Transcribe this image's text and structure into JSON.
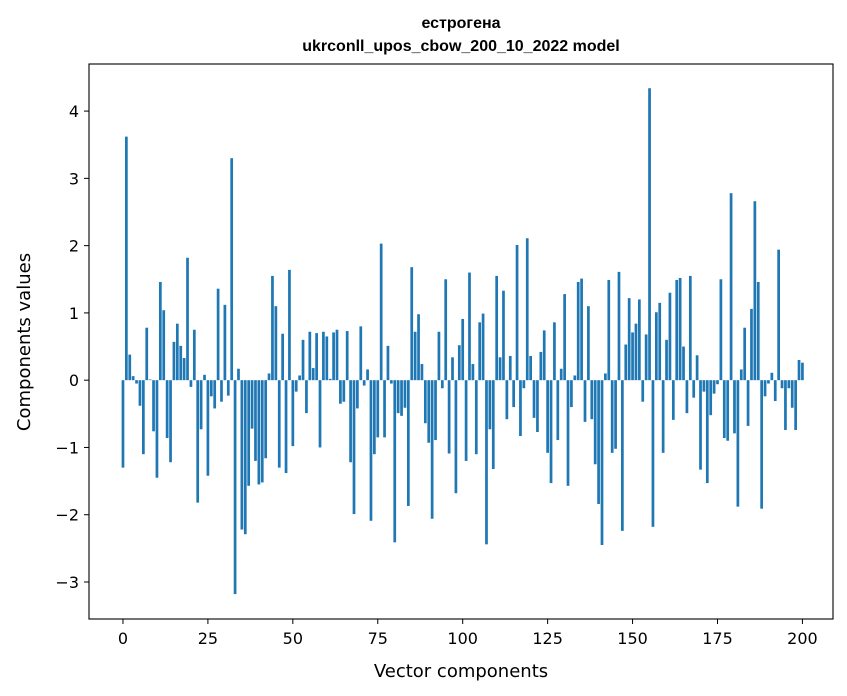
{
  "chart_data": {
    "type": "bar",
    "title_line1": "естрогена",
    "title_line2": "ukrconll_upos_cbow_200_10_2022 model",
    "xlabel": "Vector components",
    "ylabel": "Components values",
    "xlim": [
      -10,
      209
    ],
    "ylim": [
      -3.55,
      4.7
    ],
    "x_ticks": [
      0,
      25,
      50,
      75,
      100,
      125,
      150,
      175,
      200
    ],
    "y_ticks": [
      -3,
      -2,
      -1,
      0,
      1,
      2,
      3,
      4
    ],
    "y_tick_labels": [
      "−3",
      "−2",
      "−1",
      "0",
      "1",
      "2",
      "3",
      "4"
    ],
    "bar_color": "#1f77b4",
    "grid": false,
    "values": [
      -1.3,
      3.62,
      0.38,
      0.06,
      -0.05,
      -0.38,
      -1.1,
      0.78,
      0.01,
      -0.76,
      -1.45,
      1.46,
      1.04,
      -0.86,
      -1.22,
      0.57,
      0.84,
      0.51,
      0.33,
      1.82,
      -0.1,
      0.75,
      -1.82,
      -0.73,
      0.08,
      -1.42,
      -0.24,
      -0.42,
      1.36,
      -0.32,
      1.12,
      -0.23,
      3.3,
      -3.18,
      0.17,
      -2.22,
      -2.29,
      -1.57,
      -0.72,
      -1.2,
      -1.55,
      -1.52,
      -1.16,
      0.1,
      1.55,
      1.1,
      -1.3,
      0.69,
      -1.38,
      1.64,
      -0.98,
      -0.17,
      0.07,
      0.6,
      -0.49,
      0.72,
      0.18,
      0.7,
      -1.0,
      0.72,
      0.65,
      0.02,
      0.71,
      0.75,
      -0.35,
      -0.32,
      0.73,
      -1.22,
      -1.99,
      -0.42,
      0.8,
      -0.08,
      0.16,
      -2.09,
      -1.1,
      -0.85,
      2.03,
      -0.85,
      0.51,
      -0.05,
      -2.41,
      -0.49,
      -0.53,
      -0.41,
      -1.87,
      1.68,
      0.72,
      0.98,
      0.24,
      -0.64,
      -0.93,
      -2.06,
      -0.89,
      0.72,
      -0.12,
      1.5,
      -1.09,
      0.34,
      -1.68,
      0.52,
      0.91,
      -1.2,
      1.6,
      0.24,
      -1.1,
      0.86,
      0.99,
      -2.44,
      -0.73,
      -1.32,
      1.55,
      0.34,
      1.33,
      -0.58,
      0.36,
      -0.4,
      2.01,
      -0.83,
      -0.12,
      2.11,
      0.36,
      -0.56,
      -0.77,
      0.42,
      0.74,
      -1.08,
      -1.53,
      0.86,
      -0.89,
      0.17,
      1.28,
      -1.57,
      -0.4,
      0.07,
      1.46,
      1.51,
      -0.62,
      1.1,
      -0.58,
      -1.25,
      -1.84,
      -2.45,
      0.1,
      1.49,
      -1.08,
      -1.02,
      1.61,
      -2.24,
      0.53,
      1.22,
      0.71,
      0.84,
      1.2,
      -0.32,
      0.68,
      4.34,
      -2.18,
      1.01,
      1.15,
      -1.08,
      0.6,
      1.3,
      -0.59,
      1.49,
      1.52,
      0.5,
      -0.49,
      1.55,
      -0.26,
      0.37,
      -1.33,
      -0.17,
      -1.53,
      -0.52,
      -0.2,
      -0.06,
      1.5,
      -0.86,
      -0.9,
      2.78,
      -0.79,
      -1.88,
      0.16,
      0.78,
      -0.68,
      1.06,
      2.66,
      1.46,
      -1.91,
      -0.24,
      -0.05,
      0.11,
      -0.31,
      1.94,
      -0.12,
      -0.74,
      -0.12,
      -0.41,
      -0.74,
      0.3,
      0.26
    ]
  }
}
